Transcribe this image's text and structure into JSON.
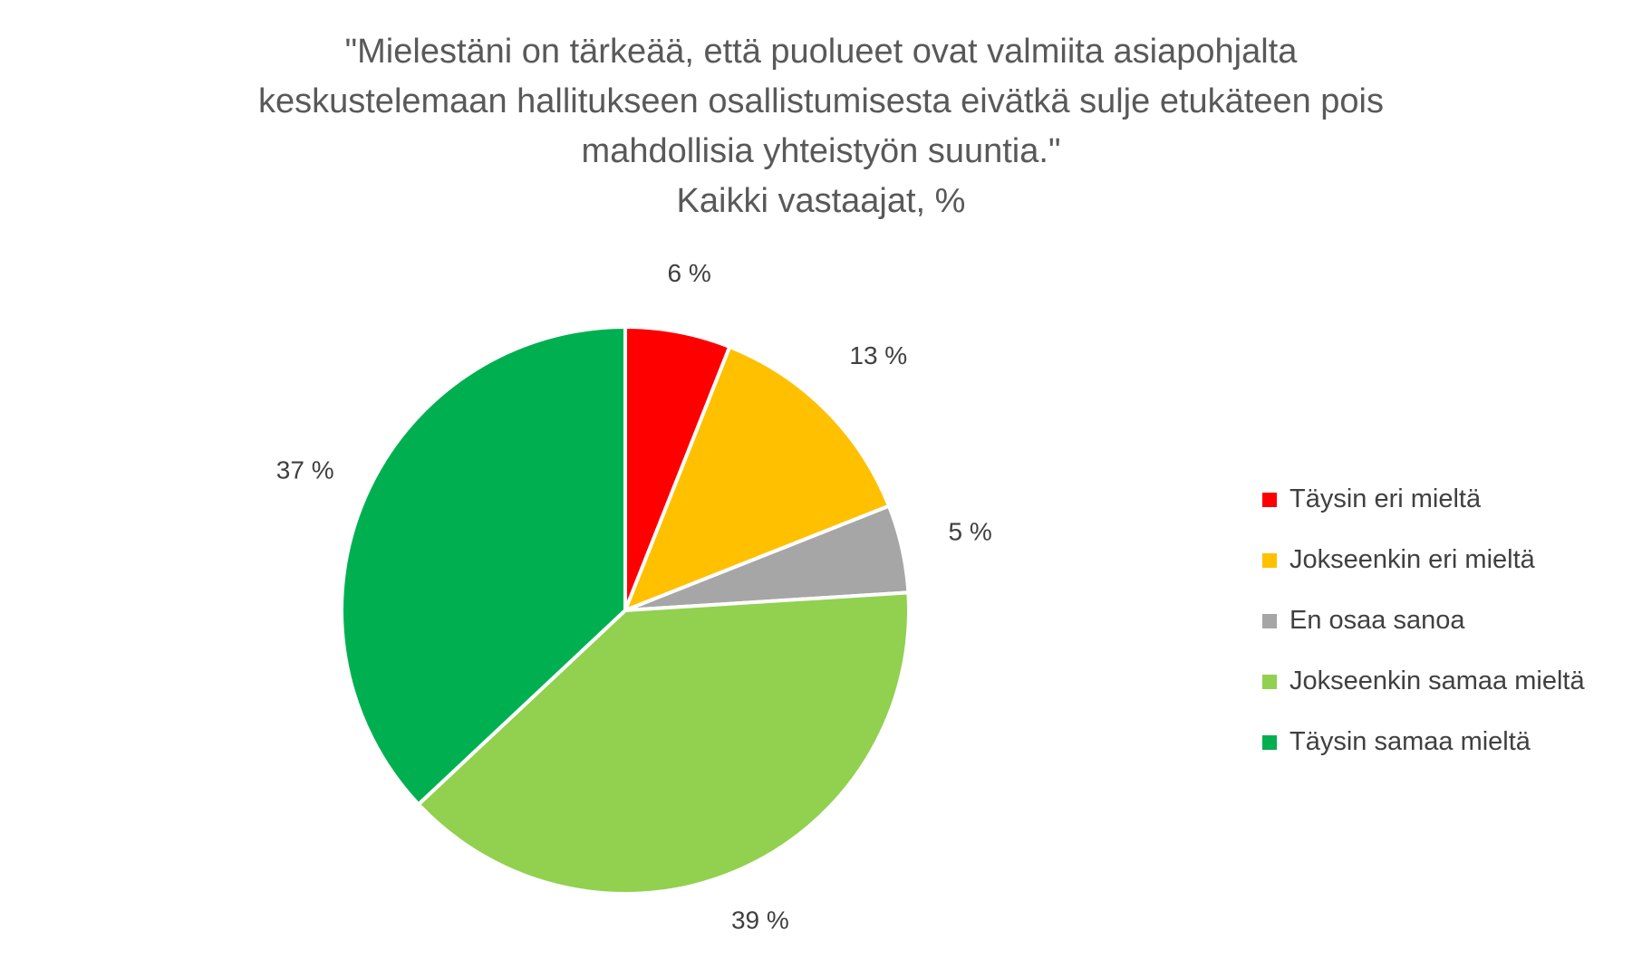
{
  "chart_data": {
    "type": "pie",
    "title": [
      "\"Mielestäni on tärkeää, että puolueet ovat valmiita asiapohjalta",
      "keskustelemaan hallitukseen osallistumisesta eivätkä sulje etukäteen pois",
      "mahdollisia yhteistyön suuntia.\"",
      "Kaikki vastaajat, %"
    ],
    "categories": [
      "Täysin eri mieltä",
      "Jokseenkin eri mieltä",
      "En osaa sanoa",
      "Jokseenkin samaa mieltä",
      "Täysin samaa mieltä"
    ],
    "values": [
      6,
      13,
      5,
      39,
      37
    ],
    "data_labels": [
      "6 %",
      "13 %",
      "5 %",
      "39 %",
      "37 %"
    ],
    "colors": [
      "#ff0000",
      "#ffc000",
      "#a6a6a6",
      "#92d050",
      "#00b050"
    ],
    "start_angle": "12 o'clock",
    "direction": "clockwise",
    "legend_position": "right"
  }
}
